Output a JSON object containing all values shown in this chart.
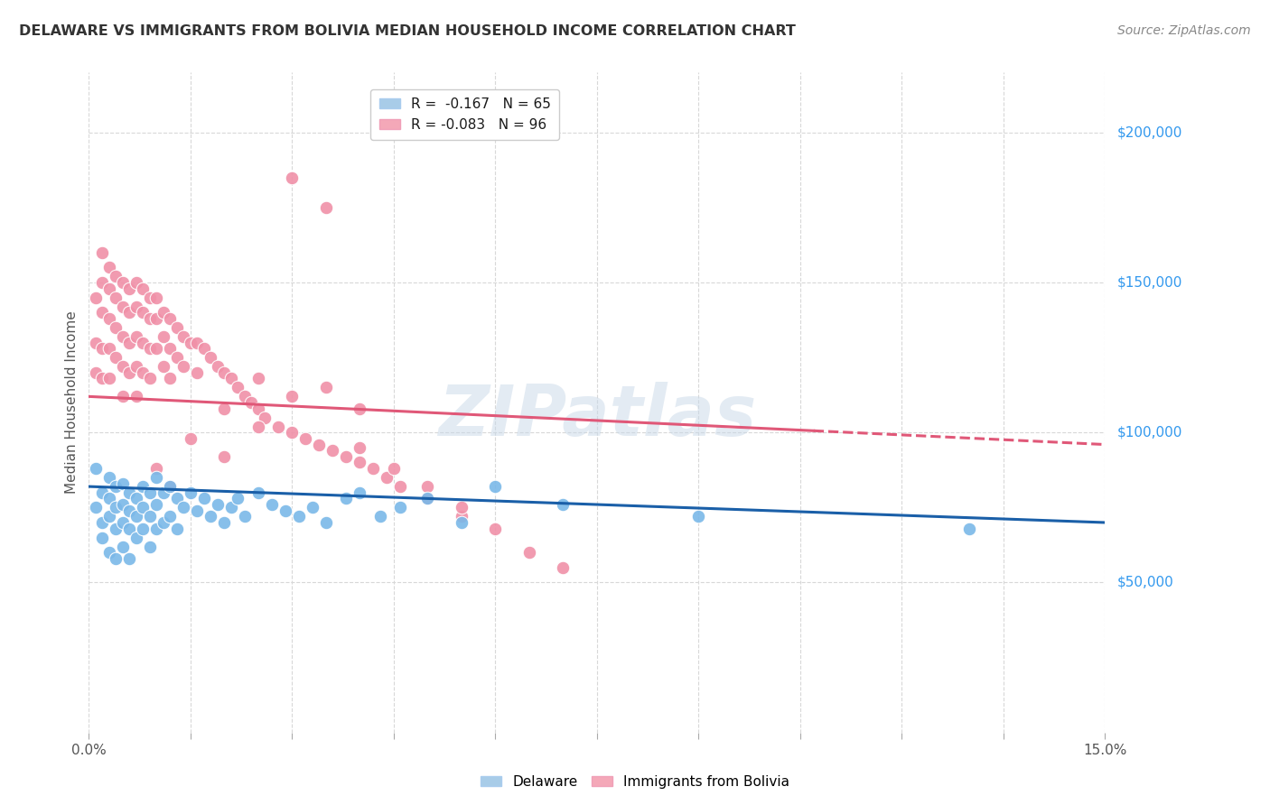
{
  "title": "DELAWARE VS IMMIGRANTS FROM BOLIVIA MEDIAN HOUSEHOLD INCOME CORRELATION CHART",
  "source": "Source: ZipAtlas.com",
  "ylabel": "Median Household Income",
  "xlim": [
    0.0,
    0.15
  ],
  "ylim": [
    0,
    220000
  ],
  "ytick_values": [
    50000,
    100000,
    150000,
    200000
  ],
  "delaware_color": "#7ab8e8",
  "bolivia_color": "#f090a8",
  "delaware_line_color": "#1a5fa8",
  "bolivia_line_color": "#e05878",
  "watermark": "ZIPatlas",
  "background_color": "#ffffff",
  "grid_color": "#d8d8d8",
  "legend_del_color": "#a8cce8",
  "legend_bol_color": "#f4a8b8",
  "delaware_x": [
    0.001,
    0.001,
    0.002,
    0.002,
    0.002,
    0.003,
    0.003,
    0.003,
    0.003,
    0.004,
    0.004,
    0.004,
    0.004,
    0.005,
    0.005,
    0.005,
    0.005,
    0.006,
    0.006,
    0.006,
    0.006,
    0.007,
    0.007,
    0.007,
    0.008,
    0.008,
    0.008,
    0.009,
    0.009,
    0.009,
    0.01,
    0.01,
    0.01,
    0.011,
    0.011,
    0.012,
    0.012,
    0.013,
    0.013,
    0.014,
    0.015,
    0.016,
    0.017,
    0.018,
    0.019,
    0.02,
    0.021,
    0.022,
    0.023,
    0.025,
    0.027,
    0.029,
    0.031,
    0.033,
    0.035,
    0.038,
    0.04,
    0.043,
    0.046,
    0.05,
    0.055,
    0.06,
    0.07,
    0.09,
    0.13
  ],
  "delaware_y": [
    88000,
    75000,
    80000,
    70000,
    65000,
    85000,
    78000,
    72000,
    60000,
    82000,
    75000,
    68000,
    58000,
    83000,
    76000,
    70000,
    62000,
    80000,
    74000,
    68000,
    58000,
    78000,
    72000,
    65000,
    82000,
    75000,
    68000,
    80000,
    72000,
    62000,
    85000,
    76000,
    68000,
    80000,
    70000,
    82000,
    72000,
    78000,
    68000,
    75000,
    80000,
    74000,
    78000,
    72000,
    76000,
    70000,
    75000,
    78000,
    72000,
    80000,
    76000,
    74000,
    72000,
    75000,
    70000,
    78000,
    80000,
    72000,
    75000,
    78000,
    70000,
    82000,
    76000,
    72000,
    68000
  ],
  "bolivia_x": [
    0.001,
    0.001,
    0.001,
    0.002,
    0.002,
    0.002,
    0.002,
    0.002,
    0.003,
    0.003,
    0.003,
    0.003,
    0.003,
    0.004,
    0.004,
    0.004,
    0.004,
    0.005,
    0.005,
    0.005,
    0.005,
    0.005,
    0.006,
    0.006,
    0.006,
    0.006,
    0.007,
    0.007,
    0.007,
    0.007,
    0.007,
    0.008,
    0.008,
    0.008,
    0.008,
    0.009,
    0.009,
    0.009,
    0.009,
    0.01,
    0.01,
    0.01,
    0.011,
    0.011,
    0.011,
    0.012,
    0.012,
    0.012,
    0.013,
    0.013,
    0.014,
    0.014,
    0.015,
    0.016,
    0.016,
    0.017,
    0.018,
    0.019,
    0.02,
    0.021,
    0.022,
    0.023,
    0.024,
    0.025,
    0.026,
    0.028,
    0.03,
    0.032,
    0.034,
    0.036,
    0.038,
    0.04,
    0.042,
    0.044,
    0.046,
    0.05,
    0.055,
    0.06,
    0.065,
    0.07,
    0.03,
    0.035,
    0.04,
    0.045,
    0.05,
    0.055,
    0.035,
    0.04,
    0.025,
    0.03,
    0.02,
    0.025,
    0.015,
    0.02,
    0.01,
    0.012
  ],
  "bolivia_y": [
    145000,
    130000,
    120000,
    160000,
    150000,
    140000,
    128000,
    118000,
    155000,
    148000,
    138000,
    128000,
    118000,
    152000,
    145000,
    135000,
    125000,
    150000,
    142000,
    132000,
    122000,
    112000,
    148000,
    140000,
    130000,
    120000,
    150000,
    142000,
    132000,
    122000,
    112000,
    148000,
    140000,
    130000,
    120000,
    145000,
    138000,
    128000,
    118000,
    145000,
    138000,
    128000,
    140000,
    132000,
    122000,
    138000,
    128000,
    118000,
    135000,
    125000,
    132000,
    122000,
    130000,
    130000,
    120000,
    128000,
    125000,
    122000,
    120000,
    118000,
    115000,
    112000,
    110000,
    108000,
    105000,
    102000,
    100000,
    98000,
    96000,
    94000,
    92000,
    90000,
    88000,
    85000,
    82000,
    78000,
    72000,
    68000,
    60000,
    55000,
    185000,
    175000,
    95000,
    88000,
    82000,
    75000,
    115000,
    108000,
    118000,
    112000,
    108000,
    102000,
    98000,
    92000,
    88000,
    82000
  ]
}
